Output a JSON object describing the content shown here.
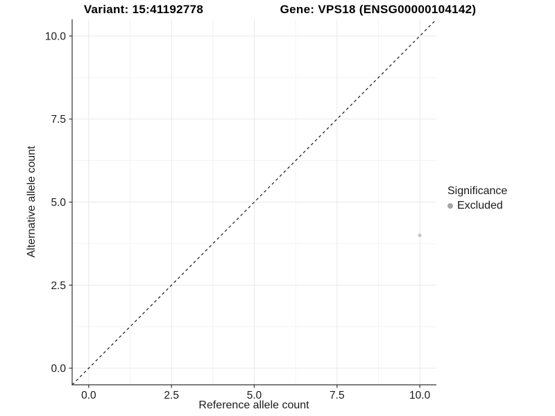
{
  "chart_data": {
    "type": "scatter",
    "title_left": "Variant: 15:41192778",
    "title_right": "Gene: VPS18 (ENSG00000104142)",
    "x": {
      "label": "Reference allele count",
      "range": [
        -0.5,
        10.5
      ],
      "tick_values": [
        0,
        2.5,
        5,
        7.5,
        10
      ],
      "tick_labels": [
        "0.0",
        "2.5",
        "5.0",
        "7.5",
        "10.0"
      ]
    },
    "y": {
      "label": "Alternative allele count",
      "range": [
        -0.5,
        10.5
      ],
      "tick_values": [
        0,
        2.5,
        5,
        7.5,
        10
      ],
      "tick_labels": [
        "0.0",
        "2.5",
        "5.0",
        "7.5",
        "10.0"
      ]
    },
    "grid": {
      "major": true,
      "minor": true
    },
    "identity_line": {
      "slope": 1,
      "intercept": 0,
      "style": "dashed",
      "color": "#000000"
    },
    "series": [
      {
        "name": "Excluded",
        "color": "#c6c6c6",
        "points": [
          {
            "x": 10,
            "y": 4
          }
        ]
      }
    ],
    "legend": {
      "title": "Significance",
      "position": "right",
      "items": [
        {
          "label": "Excluded",
          "color": "#a6a6a6"
        }
      ]
    }
  },
  "colors": {
    "background": "#ffffff",
    "axis_line": "#333333",
    "grid_major": "#e8e8e8",
    "grid_minor": "#f3f3f3",
    "tick_text": "#1a1a1a",
    "title_text": "#000000"
  }
}
